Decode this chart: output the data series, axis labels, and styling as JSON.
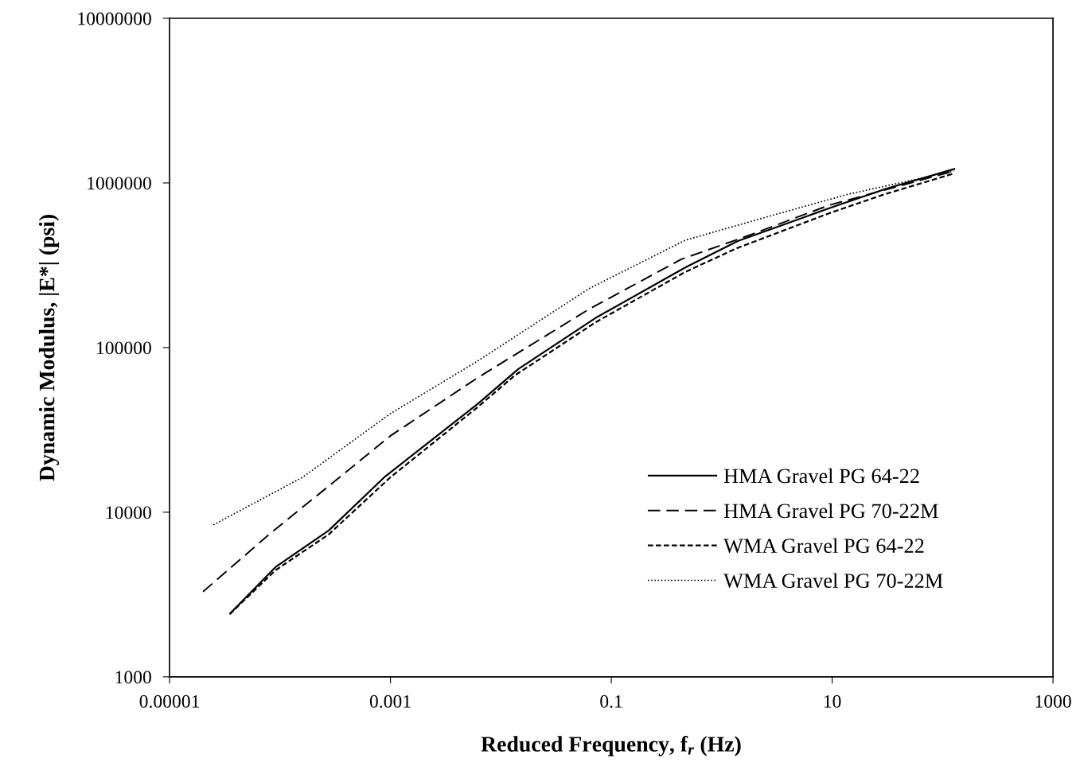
{
  "chart_data": {
    "type": "line",
    "xlabel": "Reduced Frequency, f$_{r}$ (Hz)",
    "ylabel": "Dynamic Modulus, |E*| (psi)",
    "log": "xy",
    "grid": false,
    "legend": "bottom right",
    "marker": "none",
    "xlim": [
      1e-05,
      1000
    ],
    "xticks": [
      {
        "value": 1e-05,
        "label": "0.00001"
      },
      0.001,
      0.1,
      10,
      1000
    ],
    "ylim": [
      1000,
      10000000
    ],
    "yticks": [
      1000,
      10000,
      100000,
      1000000,
      10000000
    ],
    "series": [
      {
        "name": "HMA Gravel PG 64-22",
        "color": "#000000",
        "line_style": "solid",
        "x": [
          3.5e-05,
          9.1e-05,
          0.000276,
          0.00088,
          0.00615,
          0.0144,
          0.0741,
          0.475,
          1.4,
          9.75,
          31.2,
          130
        ],
        "values": [
          2410,
          4640,
          7740,
          16300,
          45400,
          74100,
          153000,
          308000,
          444000,
          708000,
          925000,
          1220000
        ]
      },
      {
        "name": "HMA Gravel PG 70-22M",
        "color": "#000000",
        "line_style": "dashed",
        "x": [
          2.01e-05,
          7.96e-05,
          0.000327,
          0.001,
          0.00615,
          0.0628,
          0.431,
          1.6,
          9.44,
          126
        ],
        "values": [
          3290,
          7330,
          15800,
          29100,
          65500,
          171000,
          344000,
          469000,
          733000,
          1180000
        ]
      },
      {
        "name": "WMA Gravel PG 64-22",
        "color": "#000000",
        "line_style": "short dashed",
        "x": [
          3.5e-05,
          9.1e-05,
          0.000276,
          0.001,
          0.00615,
          0.0134,
          0.0729,
          0.468,
          1.38,
          9.44,
          30.1,
          126
        ],
        "values": [
          2400,
          4440,
          7330,
          16300,
          43400,
          67800,
          143000,
          288000,
          402000,
          655000,
          855000,
          1140000
        ]
      },
      {
        "name": "WMA Gravel PG 70-22M",
        "color": "#000000",
        "line_style": "dotted",
        "x": [
          2.49e-05,
          0.00016,
          0.001,
          0.00615,
          0.0628,
          0.468,
          3.01,
          14.1,
          126
        ],
        "values": [
          8370,
          16300,
          39700,
          82800,
          228000,
          449000,
          641000,
          855000,
          1180000
        ]
      }
    ]
  }
}
